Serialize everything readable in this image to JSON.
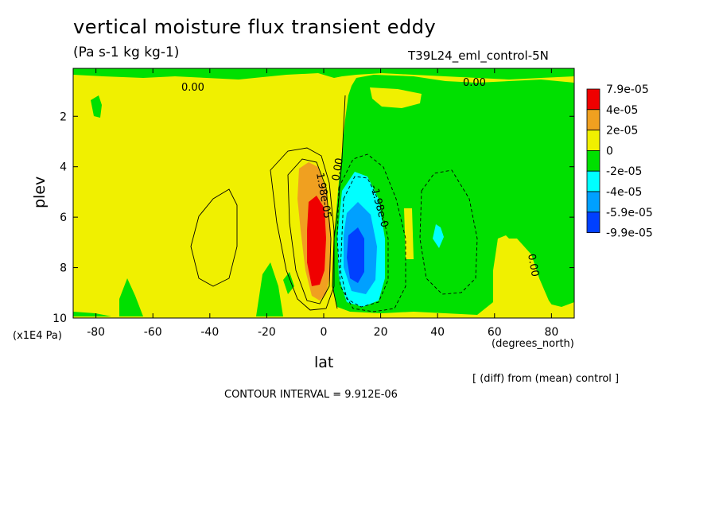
{
  "chart_data": {
    "type": "heatmap",
    "title": "vertical moisture flux transient eddy",
    "subtitle": "(Pa s-1 kg kg-1)",
    "run_label": "T39L24_eml_control-5N",
    "xlabel": "lat",
    "ylabel": "plev",
    "x_unit": "(degrees_north)",
    "y_unit": "(x1E4 Pa)",
    "x_ticks": [
      "-80",
      "-60",
      "-40",
      "-20",
      "0",
      "20",
      "40",
      "60",
      "80"
    ],
    "x_tick_values": [
      -80,
      -60,
      -40,
      -20,
      0,
      20,
      40,
      60,
      80
    ],
    "y_ticks": [
      "2",
      "4",
      "6",
      "8",
      "10"
    ],
    "y_tick_values": [
      2,
      4,
      6,
      8,
      10
    ],
    "xlim": [
      -88,
      88
    ],
    "ylim": [
      10,
      0.1
    ],
    "y_inverted": true,
    "legend": {
      "position": "right",
      "labels": [
        "7.9e-05",
        "4e-05",
        "2e-05",
        "0",
        "-2e-05",
        "-4e-05",
        "-5.9e-05",
        "-9.9e-05"
      ],
      "colors": [
        "#f00000",
        "#f0a020",
        "#f0f000",
        "#00e000",
        "#00ffff",
        "#00a0ff",
        "#0040ff"
      ]
    },
    "contour_labels": [
      "0.00",
      "0.00",
      "1.98e-05",
      "0.00",
      "-1.98e-0",
      "0.00"
    ],
    "contour_interval_text": "CONTOUR INTERVAL = 9.912E-06",
    "comparison_text": "[ (diff) from (mean) control ]"
  }
}
